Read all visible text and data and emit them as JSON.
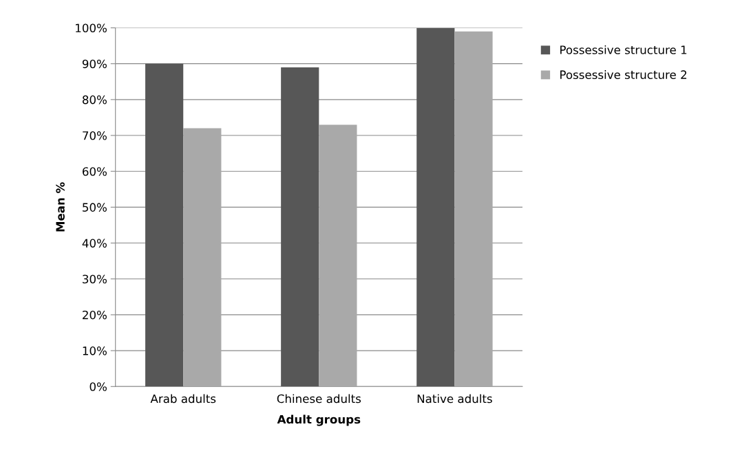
{
  "chart_data": {
    "type": "bar",
    "xlabel": "Adult groups",
    "ylabel": "Mean %",
    "categories": [
      "Arab adults",
      "Chinese adults",
      "Native adults"
    ],
    "series": [
      {
        "name": "Possessive structure 1",
        "color": "#575757",
        "values": [
          90,
          89,
          100
        ]
      },
      {
        "name": "Possessive structure 2",
        "color": "#a9a9a9",
        "values": [
          72,
          73,
          99
        ]
      }
    ],
    "ylim": [
      0,
      100
    ],
    "yticks": [
      {
        "value": 0,
        "label": "0%"
      },
      {
        "value": 10,
        "label": "10%"
      },
      {
        "value": 20,
        "label": "20%"
      },
      {
        "value": 30,
        "label": "30%"
      },
      {
        "value": 40,
        "label": "40%"
      },
      {
        "value": 50,
        "label": "50%"
      },
      {
        "value": 60,
        "label": "60%"
      },
      {
        "value": 70,
        "label": "70%"
      },
      {
        "value": 80,
        "label": "80%"
      },
      {
        "value": 90,
        "label": "90%"
      },
      {
        "value": 100,
        "label": "100%"
      }
    ],
    "grid": "y",
    "legend": "right"
  }
}
